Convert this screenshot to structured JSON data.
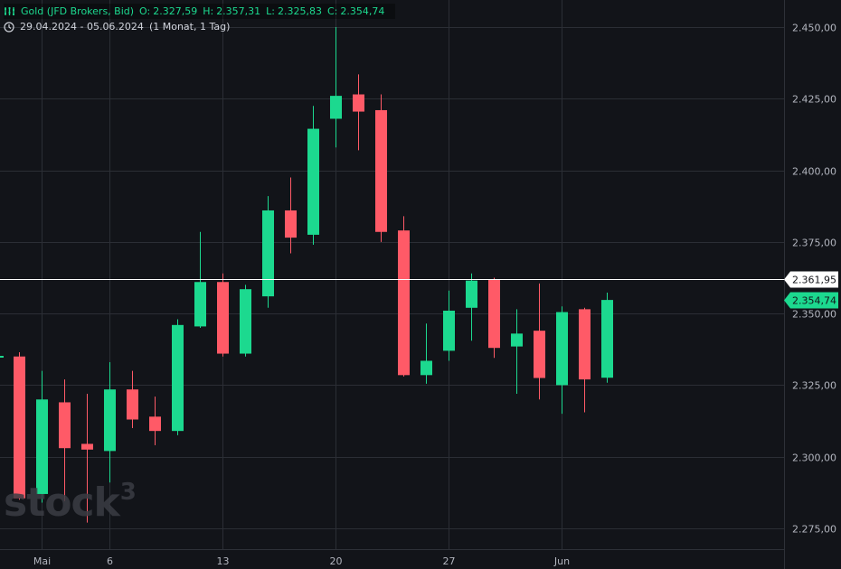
{
  "header": {
    "title": "Gold (JFD Brokers, Bid)",
    "open_label": "O:",
    "open": "2.327,59",
    "high_label": "H:",
    "high": "2.357,31",
    "low_label": "L:",
    "low": "2.325,83",
    "close_label": "C:",
    "close": "2.354,74",
    "date_range": "29.04.2024 - 05.06.2024",
    "period": "(1 Monat, 1 Tag)"
  },
  "watermark": {
    "text": "stock",
    "sup": "3"
  },
  "colors": {
    "background": "#121419",
    "up": "#1cd98f",
    "down": "#ff5a67",
    "grid": "#2b2e35",
    "text": "#d1d4dc"
  },
  "chart_data": {
    "type": "candlestick",
    "title": "Gold (JFD Brokers, Bid)",
    "ylim": [
      2267.5,
      2457.5
    ],
    "y_ticks": [
      2275,
      2300,
      2325,
      2350,
      2375,
      2400,
      2425,
      2450
    ],
    "y_tick_labels": [
      "2.275,00",
      "2.300,00",
      "2.325,00",
      "2.350,00",
      "2.375,00",
      "2.400,00",
      "2.425,00",
      "2.450,00"
    ],
    "x_ticks": [
      {
        "label": "Mai",
        "index": 1
      },
      {
        "label": "6",
        "index": 4
      },
      {
        "label": "13",
        "index": 9
      },
      {
        "label": "20",
        "index": 14
      },
      {
        "label": "27",
        "index": 19
      },
      {
        "label": "Jun",
        "index": 24
      }
    ],
    "candles": [
      {
        "o": 2335.0,
        "h": 2336.5,
        "l": 2285.0,
        "c": 2285.5
      },
      {
        "o": 2287.0,
        "h": 2330.0,
        "l": 2284.0,
        "c": 2320.0
      },
      {
        "o": 2319.0,
        "h": 2327.0,
        "l": 2284.5,
        "c": 2303.0
      },
      {
        "o": 2304.5,
        "h": 2322.0,
        "l": 2277.0,
        "c": 2302.5
      },
      {
        "o": 2302.0,
        "h": 2333.0,
        "l": 2291.0,
        "c": 2323.5
      },
      {
        "o": 2323.5,
        "h": 2330.0,
        "l": 2310.0,
        "c": 2313.0
      },
      {
        "o": 2314.0,
        "h": 2321.0,
        "l": 2304.0,
        "c": 2309.0
      },
      {
        "o": 2309.0,
        "h": 2348.0,
        "l": 2307.5,
        "c": 2346.0
      },
      {
        "o": 2345.5,
        "h": 2378.5,
        "l": 2345.0,
        "c": 2361.0
      },
      {
        "o": 2361.0,
        "h": 2364.0,
        "l": 2335.0,
        "c": 2336.0
      },
      {
        "o": 2336.0,
        "h": 2360.0,
        "l": 2335.0,
        "c": 2358.5
      },
      {
        "o": 2356.0,
        "h": 2391.0,
        "l": 2352.0,
        "c": 2386.0
      },
      {
        "o": 2386.0,
        "h": 2397.5,
        "l": 2371.0,
        "c": 2376.5
      },
      {
        "o": 2377.5,
        "h": 2422.5,
        "l": 2374.0,
        "c": 2414.5
      },
      {
        "o": 2418.0,
        "h": 2450.0,
        "l": 2408.0,
        "c": 2426.0
      },
      {
        "o": 2426.5,
        "h": 2433.5,
        "l": 2407.0,
        "c": 2420.5
      },
      {
        "o": 2421.0,
        "h": 2426.5,
        "l": 2375.0,
        "c": 2378.5
      },
      {
        "o": 2379.0,
        "h": 2384.0,
        "l": 2328.0,
        "c": 2328.5
      },
      {
        "o": 2328.5,
        "h": 2346.5,
        "l": 2325.5,
        "c": 2333.5
      },
      {
        "o": 2337.0,
        "h": 2358.0,
        "l": 2333.5,
        "c": 2351.0
      },
      {
        "o": 2352.0,
        "h": 2364.0,
        "l": 2340.5,
        "c": 2361.5
      },
      {
        "o": 2362.0,
        "h": 2362.5,
        "l": 2334.5,
        "c": 2338.0
      },
      {
        "o": 2338.5,
        "h": 2351.5,
        "l": 2322.0,
        "c": 2343.0
      },
      {
        "o": 2344.0,
        "h": 2360.5,
        "l": 2320.0,
        "c": 2327.5
      },
      {
        "o": 2325.0,
        "h": 2352.5,
        "l": 2315.0,
        "c": 2350.5
      },
      {
        "o": 2351.5,
        "h": 2352.0,
        "l": 2315.5,
        "c": 2327.0
      },
      {
        "o": 2327.59,
        "h": 2357.31,
        "l": 2325.83,
        "c": 2354.74
      }
    ],
    "price_lines": [
      {
        "value": 2361.95,
        "label": "2.361,95",
        "style": "white-line"
      },
      {
        "value": 2354.74,
        "label": "2.354,74",
        "style": "last-price"
      }
    ]
  }
}
